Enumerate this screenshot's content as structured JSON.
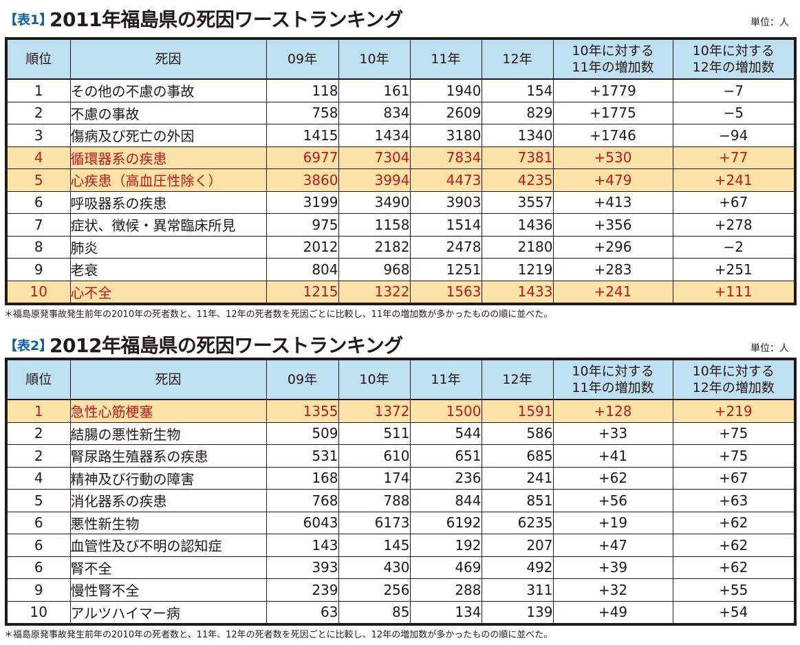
{
  "tables": [
    {
      "tag": "【表1】",
      "title": "2011年福島県の死因ワーストランキング",
      "unit": "単位：人",
      "headers": [
        "順位",
        "死因",
        "09年",
        "10年",
        "11年",
        "12年",
        "10年に対する\n11年の増加数",
        "10年に対する\n12年の増加数"
      ],
      "rows": [
        [
          "1",
          "その他の不慮の事故",
          "118",
          "161",
          "1940",
          "154",
          "+1779",
          "−7"
        ],
        [
          "2",
          "不慮の事故",
          "758",
          "834",
          "2609",
          "829",
          "+1775",
          "−5"
        ],
        [
          "3",
          "傷病及び死亡の外因",
          "1415",
          "1434",
          "3180",
          "1340",
          "+1746",
          "−94"
        ],
        [
          "4",
          "循環器系の疾患",
          "6977",
          "7304",
          "7834",
          "7381",
          "+530",
          "+77"
        ],
        [
          "5",
          "心疾患（高血圧性除く）",
          "3860",
          "3994",
          "4473",
          "4235",
          "+479",
          "+241"
        ],
        [
          "6",
          "呼吸器系の疾患",
          "3199",
          "3490",
          "3903",
          "3557",
          "+413",
          "+67"
        ],
        [
          "7",
          "症状、徴候・異常臨床所見",
          "975",
          "1158",
          "1514",
          "1436",
          "+356",
          "+278"
        ],
        [
          "8",
          "肺炎",
          "2012",
          "2182",
          "2478",
          "2180",
          "+296",
          "−2"
        ],
        [
          "9",
          "老衰",
          "804",
          "968",
          "1251",
          "1219",
          "+283",
          "+251"
        ],
        [
          "10",
          "心不全",
          "1215",
          "1322",
          "1563",
          "1433",
          "+241",
          "+111"
        ]
      ],
      "highlight_rows": [
        3,
        4,
        9
      ],
      "note": "＊福島原発事故発生前年の2010年の死者数と、11年、12年の死者数を死因ごとに比較し、11年の増加数が多かったものの順に並べた。"
    },
    {
      "tag": "【表2】",
      "title": "2012年福島県の死因ワーストランキング",
      "unit": "単位：人",
      "headers": [
        "順位",
        "死因",
        "09年",
        "10年",
        "11年",
        "12年",
        "10年に対する\n11年の増加数",
        "10年に対する\n12年の増加数"
      ],
      "rows": [
        [
          "1",
          "急性心筋梗塞",
          "1355",
          "1372",
          "1500",
          "1591",
          "+128",
          "+219"
        ],
        [
          "2",
          "結腸の悪性新生物",
          "509",
          "511",
          "544",
          "586",
          "+33",
          "+75"
        ],
        [
          "2",
          "腎尿路生殖器系の疾患",
          "531",
          "610",
          "651",
          "685",
          "+41",
          "+75"
        ],
        [
          "4",
          "精神及び行動の障害",
          "168",
          "174",
          "236",
          "241",
          "+62",
          "+67"
        ],
        [
          "5",
          "消化器系の疾患",
          "768",
          "788",
          "844",
          "851",
          "+56",
          "+63"
        ],
        [
          "6",
          "悪性新生物",
          "6043",
          "6173",
          "6192",
          "6235",
          "+19",
          "+62"
        ],
        [
          "6",
          "血管性及び不明の認知症",
          "143",
          "145",
          "192",
          "207",
          "+47",
          "+62"
        ],
        [
          "6",
          "腎不全",
          "393",
          "430",
          "469",
          "492",
          "+39",
          "+62"
        ],
        [
          "9",
          "慢性腎不全",
          "239",
          "256",
          "288",
          "311",
          "+32",
          "+55"
        ],
        [
          "10",
          "アルツハイマー病",
          "63",
          "85",
          "134",
          "139",
          "+49",
          "+54"
        ]
      ],
      "highlight_rows": [
        0
      ],
      "note": "＊福島原発事故発生前年の2010年の死者数と、11年、12年の死者数を死因ごとに比較し、12年の増加数が多かったものの順に並べた。"
    }
  ],
  "colors": {
    "header_bg": "#bfe0f3",
    "highlight_bg": "#fbe3a8",
    "highlight_text": "#c4161c",
    "tag_text": "#0b5fa5"
  }
}
